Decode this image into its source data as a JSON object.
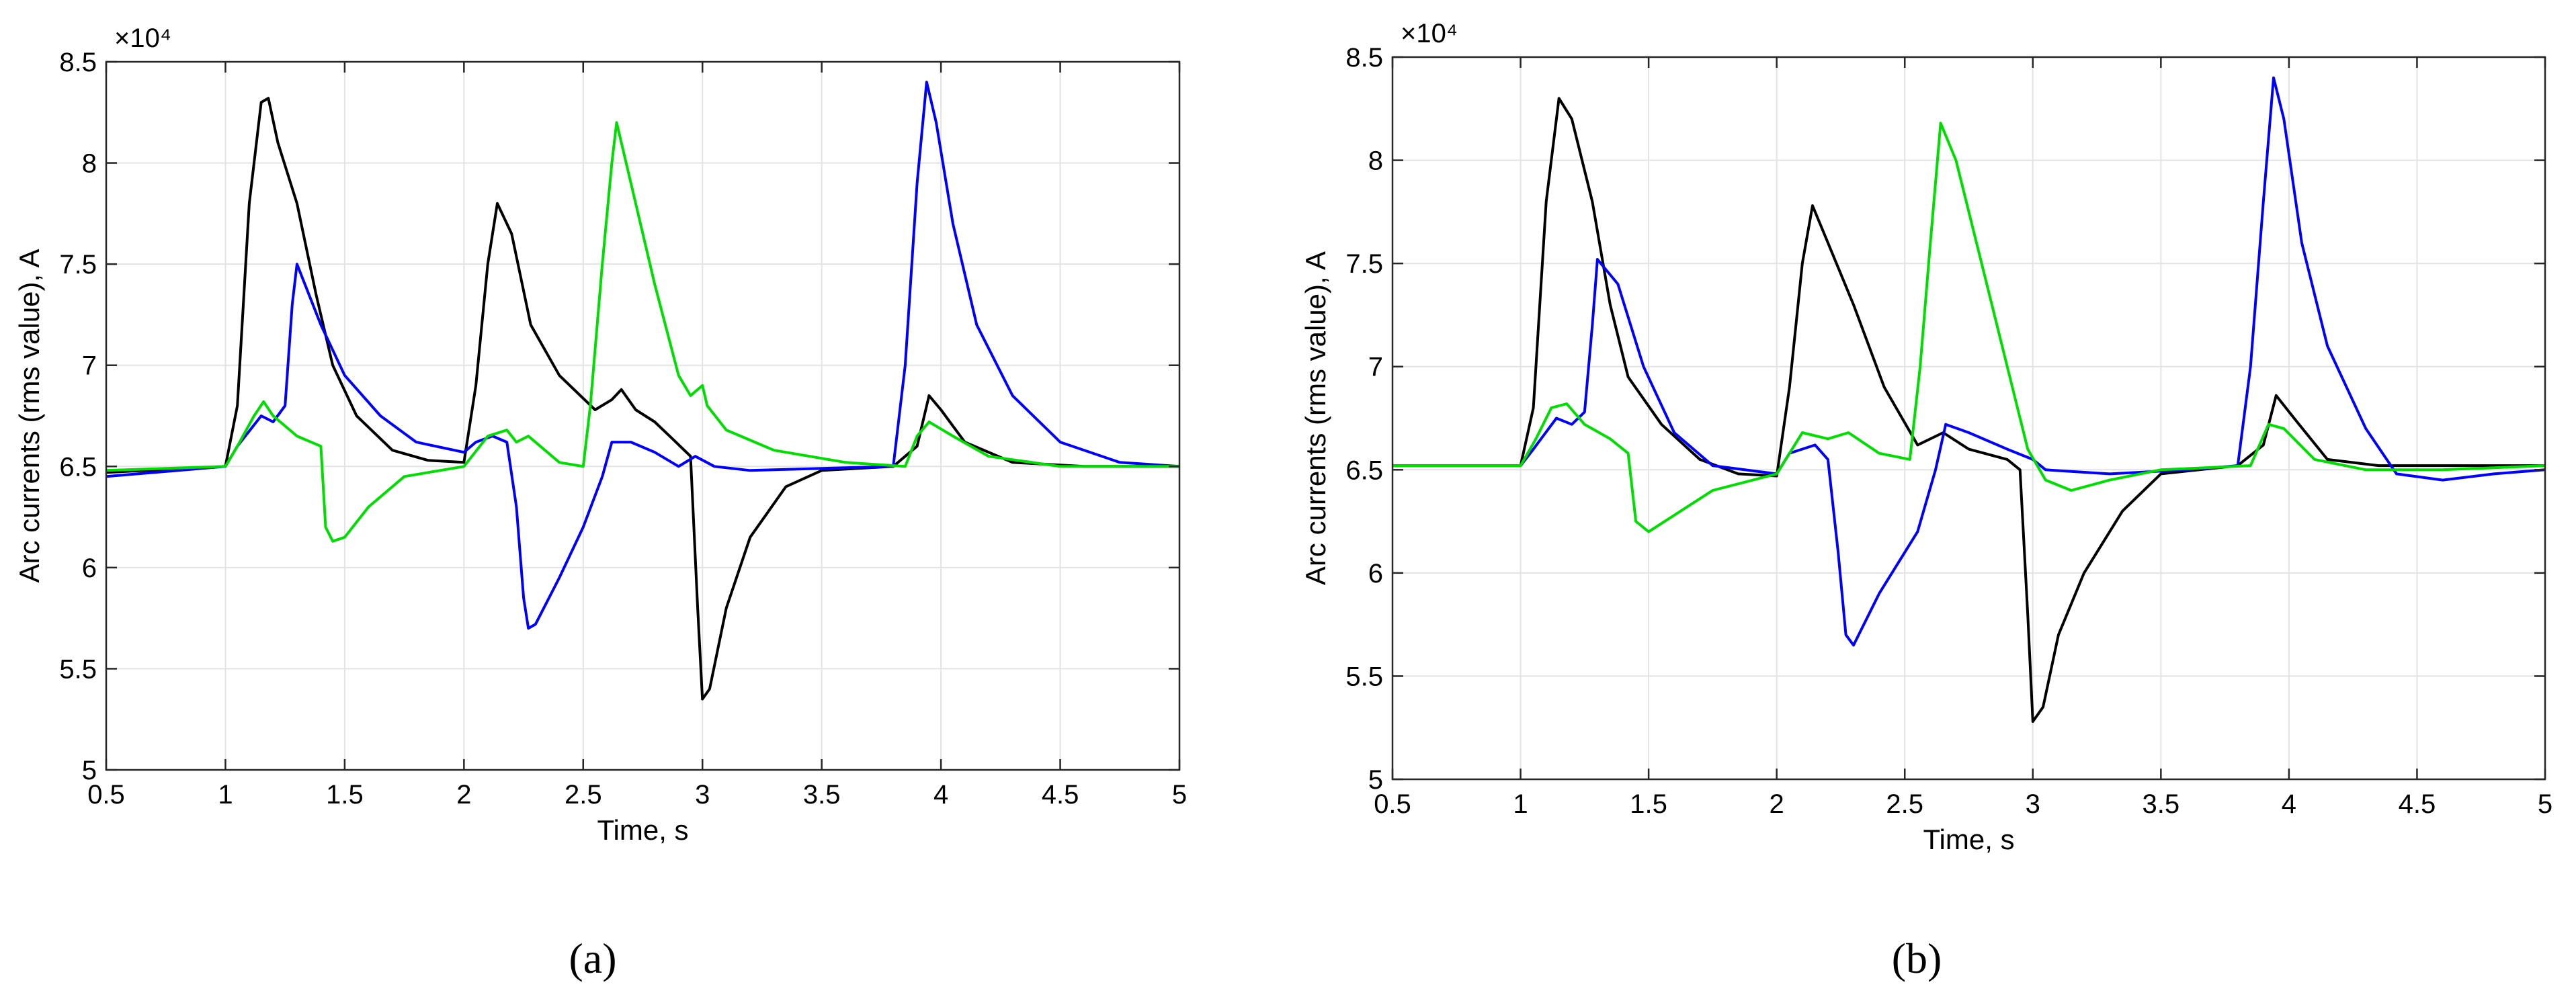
{
  "figure": {
    "captions": [
      "(a)",
      "(b)"
    ]
  },
  "chart_data": [
    {
      "panel": "a",
      "type": "line",
      "xlabel": "Time, s",
      "ylabel": "Arc currents (rms value), A",
      "y_exponent_label": "×10⁴",
      "xlim": [
        0.5,
        5
      ],
      "ylim": [
        5,
        8.5
      ],
      "xticks": [
        0.5,
        1,
        1.5,
        2,
        2.5,
        3,
        3.5,
        4,
        4.5,
        5
      ],
      "yticks": [
        5,
        5.5,
        6,
        6.5,
        7,
        7.5,
        8,
        8.5
      ],
      "grid": true,
      "series": [
        {
          "color": "#000000",
          "points": [
            [
              0.5,
              6.47
            ],
            [
              1.0,
              6.5
            ],
            [
              1.05,
              6.8
            ],
            [
              1.1,
              7.8
            ],
            [
              1.15,
              8.3
            ],
            [
              1.18,
              8.32
            ],
            [
              1.22,
              8.1
            ],
            [
              1.3,
              7.8
            ],
            [
              1.38,
              7.35
            ],
            [
              1.45,
              7.0
            ],
            [
              1.55,
              6.75
            ],
            [
              1.7,
              6.58
            ],
            [
              1.85,
              6.53
            ],
            [
              2.0,
              6.52
            ],
            [
              2.05,
              6.9
            ],
            [
              2.1,
              7.5
            ],
            [
              2.14,
              7.8
            ],
            [
              2.2,
              7.65
            ],
            [
              2.28,
              7.2
            ],
            [
              2.4,
              6.95
            ],
            [
              2.55,
              6.78
            ],
            [
              2.62,
              6.83
            ],
            [
              2.66,
              6.88
            ],
            [
              2.72,
              6.78
            ],
            [
              2.8,
              6.72
            ],
            [
              2.88,
              6.63
            ],
            [
              2.95,
              6.55
            ],
            [
              2.98,
              5.8
            ],
            [
              3.0,
              5.35
            ],
            [
              3.03,
              5.4
            ],
            [
              3.1,
              5.8
            ],
            [
              3.2,
              6.15
            ],
            [
              3.35,
              6.4
            ],
            [
              3.5,
              6.48
            ],
            [
              3.8,
              6.5
            ],
            [
              3.9,
              6.6
            ],
            [
              3.95,
              6.85
            ],
            [
              4.0,
              6.78
            ],
            [
              4.1,
              6.62
            ],
            [
              4.3,
              6.52
            ],
            [
              4.6,
              6.5
            ],
            [
              5.0,
              6.5
            ]
          ]
        },
        {
          "color": "#0000ff",
          "points": [
            [
              0.5,
              6.45
            ],
            [
              1.0,
              6.5
            ],
            [
              1.05,
              6.6
            ],
            [
              1.15,
              6.75
            ],
            [
              1.2,
              6.72
            ],
            [
              1.25,
              6.8
            ],
            [
              1.28,
              7.3
            ],
            [
              1.3,
              7.5
            ],
            [
              1.4,
              7.2
            ],
            [
              1.5,
              6.95
            ],
            [
              1.65,
              6.75
            ],
            [
              1.8,
              6.62
            ],
            [
              2.0,
              6.57
            ],
            [
              2.05,
              6.62
            ],
            [
              2.12,
              6.65
            ],
            [
              2.18,
              6.62
            ],
            [
              2.22,
              6.3
            ],
            [
              2.25,
              5.85
            ],
            [
              2.27,
              5.7
            ],
            [
              2.3,
              5.72
            ],
            [
              2.4,
              5.95
            ],
            [
              2.5,
              6.2
            ],
            [
              2.58,
              6.45
            ],
            [
              2.62,
              6.62
            ],
            [
              2.7,
              6.62
            ],
            [
              2.8,
              6.57
            ],
            [
              2.9,
              6.5
            ],
            [
              2.97,
              6.55
            ],
            [
              3.05,
              6.5
            ],
            [
              3.2,
              6.48
            ],
            [
              3.5,
              6.49
            ],
            [
              3.8,
              6.5
            ],
            [
              3.85,
              7.0
            ],
            [
              3.9,
              7.9
            ],
            [
              3.94,
              8.4
            ],
            [
              3.98,
              8.2
            ],
            [
              4.05,
              7.7
            ],
            [
              4.15,
              7.2
            ],
            [
              4.3,
              6.85
            ],
            [
              4.5,
              6.62
            ],
            [
              4.75,
              6.52
            ],
            [
              5.0,
              6.5
            ]
          ]
        },
        {
          "color": "#00dd00",
          "points": [
            [
              0.5,
              6.48
            ],
            [
              1.0,
              6.5
            ],
            [
              1.05,
              6.6
            ],
            [
              1.12,
              6.75
            ],
            [
              1.16,
              6.82
            ],
            [
              1.2,
              6.75
            ],
            [
              1.3,
              6.65
            ],
            [
              1.4,
              6.6
            ],
            [
              1.42,
              6.2
            ],
            [
              1.45,
              6.13
            ],
            [
              1.5,
              6.15
            ],
            [
              1.6,
              6.3
            ],
            [
              1.75,
              6.45
            ],
            [
              2.0,
              6.5
            ],
            [
              2.1,
              6.65
            ],
            [
              2.18,
              6.68
            ],
            [
              2.22,
              6.62
            ],
            [
              2.27,
              6.65
            ],
            [
              2.32,
              6.6
            ],
            [
              2.4,
              6.52
            ],
            [
              2.5,
              6.5
            ],
            [
              2.53,
              6.8
            ],
            [
              2.58,
              7.5
            ],
            [
              2.62,
              8.0
            ],
            [
              2.64,
              8.2
            ],
            [
              2.7,
              7.9
            ],
            [
              2.8,
              7.4
            ],
            [
              2.9,
              6.95
            ],
            [
              2.95,
              6.85
            ],
            [
              3.0,
              6.9
            ],
            [
              3.02,
              6.8
            ],
            [
              3.1,
              6.68
            ],
            [
              3.3,
              6.58
            ],
            [
              3.6,
              6.52
            ],
            [
              3.85,
              6.5
            ],
            [
              3.9,
              6.65
            ],
            [
              3.95,
              6.72
            ],
            [
              4.05,
              6.65
            ],
            [
              4.2,
              6.55
            ],
            [
              4.5,
              6.5
            ],
            [
              5.0,
              6.5
            ]
          ]
        }
      ]
    },
    {
      "panel": "b",
      "type": "line",
      "xlabel": "Time, s",
      "ylabel": "Arc currents (rms value), A",
      "y_exponent_label": "×10⁴",
      "xlim": [
        0.5,
        5
      ],
      "ylim": [
        5,
        8.5
      ],
      "xticks": [
        0.5,
        1,
        1.5,
        2,
        2.5,
        3,
        3.5,
        4,
        4.5,
        5
      ],
      "yticks": [
        5,
        5.5,
        6,
        6.5,
        7,
        7.5,
        8,
        8.5
      ],
      "grid": true,
      "series": [
        {
          "color": "#000000",
          "points": [
            [
              0.5,
              6.52
            ],
            [
              1.0,
              6.52
            ],
            [
              1.05,
              6.8
            ],
            [
              1.1,
              7.8
            ],
            [
              1.15,
              8.3
            ],
            [
              1.2,
              8.2
            ],
            [
              1.28,
              7.8
            ],
            [
              1.35,
              7.3
            ],
            [
              1.42,
              6.95
            ],
            [
              1.55,
              6.72
            ],
            [
              1.7,
              6.55
            ],
            [
              1.85,
              6.48
            ],
            [
              2.0,
              6.47
            ],
            [
              2.05,
              6.9
            ],
            [
              2.1,
              7.5
            ],
            [
              2.14,
              7.78
            ],
            [
              2.2,
              7.6
            ],
            [
              2.3,
              7.3
            ],
            [
              2.42,
              6.9
            ],
            [
              2.55,
              6.62
            ],
            [
              2.65,
              6.68
            ],
            [
              2.75,
              6.6
            ],
            [
              2.9,
              6.55
            ],
            [
              2.95,
              6.5
            ],
            [
              2.98,
              5.8
            ],
            [
              3.0,
              5.28
            ],
            [
              3.04,
              5.35
            ],
            [
              3.1,
              5.7
            ],
            [
              3.2,
              6.0
            ],
            [
              3.35,
              6.3
            ],
            [
              3.5,
              6.48
            ],
            [
              3.8,
              6.52
            ],
            [
              3.9,
              6.62
            ],
            [
              3.95,
              6.86
            ],
            [
              4.02,
              6.75
            ],
            [
              4.15,
              6.55
            ],
            [
              4.35,
              6.52
            ],
            [
              4.6,
              6.52
            ],
            [
              5.0,
              6.52
            ]
          ]
        },
        {
          "color": "#0000ff",
          "points": [
            [
              0.5,
              6.52
            ],
            [
              1.0,
              6.52
            ],
            [
              1.05,
              6.6
            ],
            [
              1.14,
              6.75
            ],
            [
              1.2,
              6.72
            ],
            [
              1.25,
              6.78
            ],
            [
              1.28,
              7.2
            ],
            [
              1.3,
              7.52
            ],
            [
              1.38,
              7.4
            ],
            [
              1.48,
              7.0
            ],
            [
              1.6,
              6.68
            ],
            [
              1.75,
              6.52
            ],
            [
              2.0,
              6.48
            ],
            [
              2.05,
              6.58
            ],
            [
              2.15,
              6.62
            ],
            [
              2.2,
              6.55
            ],
            [
              2.24,
              6.1
            ],
            [
              2.27,
              5.7
            ],
            [
              2.3,
              5.65
            ],
            [
              2.4,
              5.9
            ],
            [
              2.55,
              6.2
            ],
            [
              2.62,
              6.5
            ],
            [
              2.66,
              6.72
            ],
            [
              2.75,
              6.68
            ],
            [
              2.9,
              6.6
            ],
            [
              3.0,
              6.55
            ],
            [
              3.05,
              6.5
            ],
            [
              3.3,
              6.48
            ],
            [
              3.6,
              6.5
            ],
            [
              3.8,
              6.52
            ],
            [
              3.85,
              7.0
            ],
            [
              3.9,
              7.8
            ],
            [
              3.94,
              8.4
            ],
            [
              3.98,
              8.2
            ],
            [
              4.05,
              7.6
            ],
            [
              4.15,
              7.1
            ],
            [
              4.3,
              6.7
            ],
            [
              4.42,
              6.48
            ],
            [
              4.6,
              6.45
            ],
            [
              4.8,
              6.48
            ],
            [
              5.0,
              6.5
            ]
          ]
        },
        {
          "color": "#00dd00",
          "points": [
            [
              0.5,
              6.52
            ],
            [
              1.0,
              6.52
            ],
            [
              1.06,
              6.65
            ],
            [
              1.12,
              6.8
            ],
            [
              1.18,
              6.82
            ],
            [
              1.25,
              6.72
            ],
            [
              1.35,
              6.65
            ],
            [
              1.42,
              6.58
            ],
            [
              1.45,
              6.25
            ],
            [
              1.5,
              6.2
            ],
            [
              1.6,
              6.28
            ],
            [
              1.75,
              6.4
            ],
            [
              2.0,
              6.48
            ],
            [
              2.1,
              6.68
            ],
            [
              2.2,
              6.65
            ],
            [
              2.28,
              6.68
            ],
            [
              2.4,
              6.58
            ],
            [
              2.52,
              6.55
            ],
            [
              2.56,
              7.0
            ],
            [
              2.6,
              7.6
            ],
            [
              2.64,
              8.18
            ],
            [
              2.7,
              8.0
            ],
            [
              2.8,
              7.5
            ],
            [
              2.9,
              7.0
            ],
            [
              2.98,
              6.6
            ],
            [
              3.05,
              6.45
            ],
            [
              3.15,
              6.4
            ],
            [
              3.3,
              6.45
            ],
            [
              3.5,
              6.5
            ],
            [
              3.85,
              6.52
            ],
            [
              3.92,
              6.72
            ],
            [
              3.98,
              6.7
            ],
            [
              4.1,
              6.55
            ],
            [
              4.3,
              6.5
            ],
            [
              4.6,
              6.5
            ],
            [
              5.0,
              6.52
            ]
          ]
        }
      ]
    }
  ]
}
